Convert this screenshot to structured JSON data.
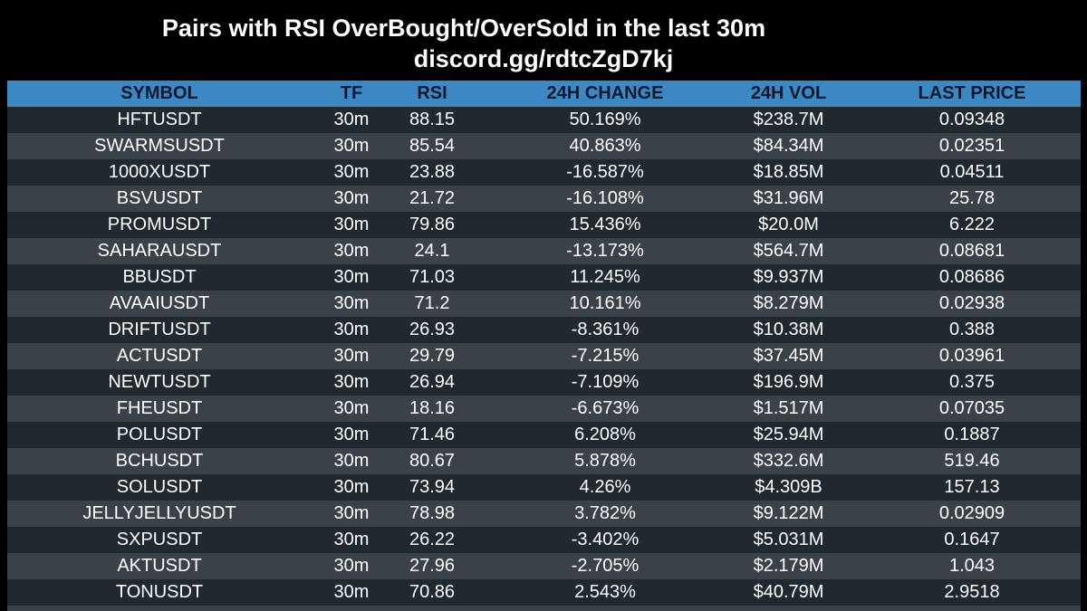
{
  "title": "Pairs with RSI OverBought/OverSold in the last 30m",
  "subtitle": "discord.gg/rdtcZgD7kj",
  "table": {
    "columns": [
      "SYMBOL",
      "TF",
      "RSI",
      "24H CHANGE",
      "24H VOL",
      "LAST PRICE"
    ],
    "rows": [
      [
        "HFTUSDT",
        "30m",
        "88.15",
        "50.169%",
        "$238.7M",
        "0.09348"
      ],
      [
        "SWARMSUSDT",
        "30m",
        "85.54",
        "40.863%",
        "$84.34M",
        "0.02351"
      ],
      [
        "1000XUSDT",
        "30m",
        "23.88",
        "-16.587%",
        "$18.85M",
        "0.04511"
      ],
      [
        "BSVUSDT",
        "30m",
        "21.72",
        "-16.108%",
        "$31.96M",
        "25.78"
      ],
      [
        "PROMUSDT",
        "30m",
        "79.86",
        "15.436%",
        "$20.0M",
        "6.222"
      ],
      [
        "SAHARAUSDT",
        "30m",
        "24.1",
        "-13.173%",
        "$564.7M",
        "0.08681"
      ],
      [
        "BBUSDT",
        "30m",
        "71.03",
        "11.245%",
        "$9.937M",
        "0.08686"
      ],
      [
        "AVAAIUSDT",
        "30m",
        "71.2",
        "10.161%",
        "$8.279M",
        "0.02938"
      ],
      [
        "DRIFTUSDT",
        "30m",
        "26.93",
        "-8.361%",
        "$10.38M",
        "0.388"
      ],
      [
        "ACTUSDT",
        "30m",
        "29.79",
        "-7.215%",
        "$37.45M",
        "0.03961"
      ],
      [
        "NEWTUSDT",
        "30m",
        "26.94",
        "-7.109%",
        "$196.9M",
        "0.375"
      ],
      [
        "FHEUSDT",
        "30m",
        "18.16",
        "-6.673%",
        "$1.517M",
        "0.07035"
      ],
      [
        "POLUSDT",
        "30m",
        "71.46",
        "6.208%",
        "$25.94M",
        "0.1887"
      ],
      [
        "BCHUSDT",
        "30m",
        "80.67",
        "5.878%",
        "$332.6M",
        "519.46"
      ],
      [
        "SOLUSDT",
        "30m",
        "73.94",
        "4.26%",
        "$4.309B",
        "157.13"
      ],
      [
        "JELLYJELLYUSDT",
        "30m",
        "78.98",
        "3.782%",
        "$9.122M",
        "0.02909"
      ],
      [
        "SXPUSDT",
        "30m",
        "26.22",
        "-3.402%",
        "$5.031M",
        "0.1647"
      ],
      [
        "AKTUSDT",
        "30m",
        "27.96",
        "-2.705%",
        "$2.179M",
        "1.043"
      ],
      [
        "TONUSDT",
        "30m",
        "70.86",
        "2.543%",
        "$40.79M",
        "2.9518"
      ]
    ]
  },
  "colors": {
    "background": "#000000",
    "header_bg": "#3b88c3",
    "header_text": "#0a1a33",
    "row_dark": "#202830",
    "row_light": "#3a4148",
    "text": "#ffffff"
  }
}
